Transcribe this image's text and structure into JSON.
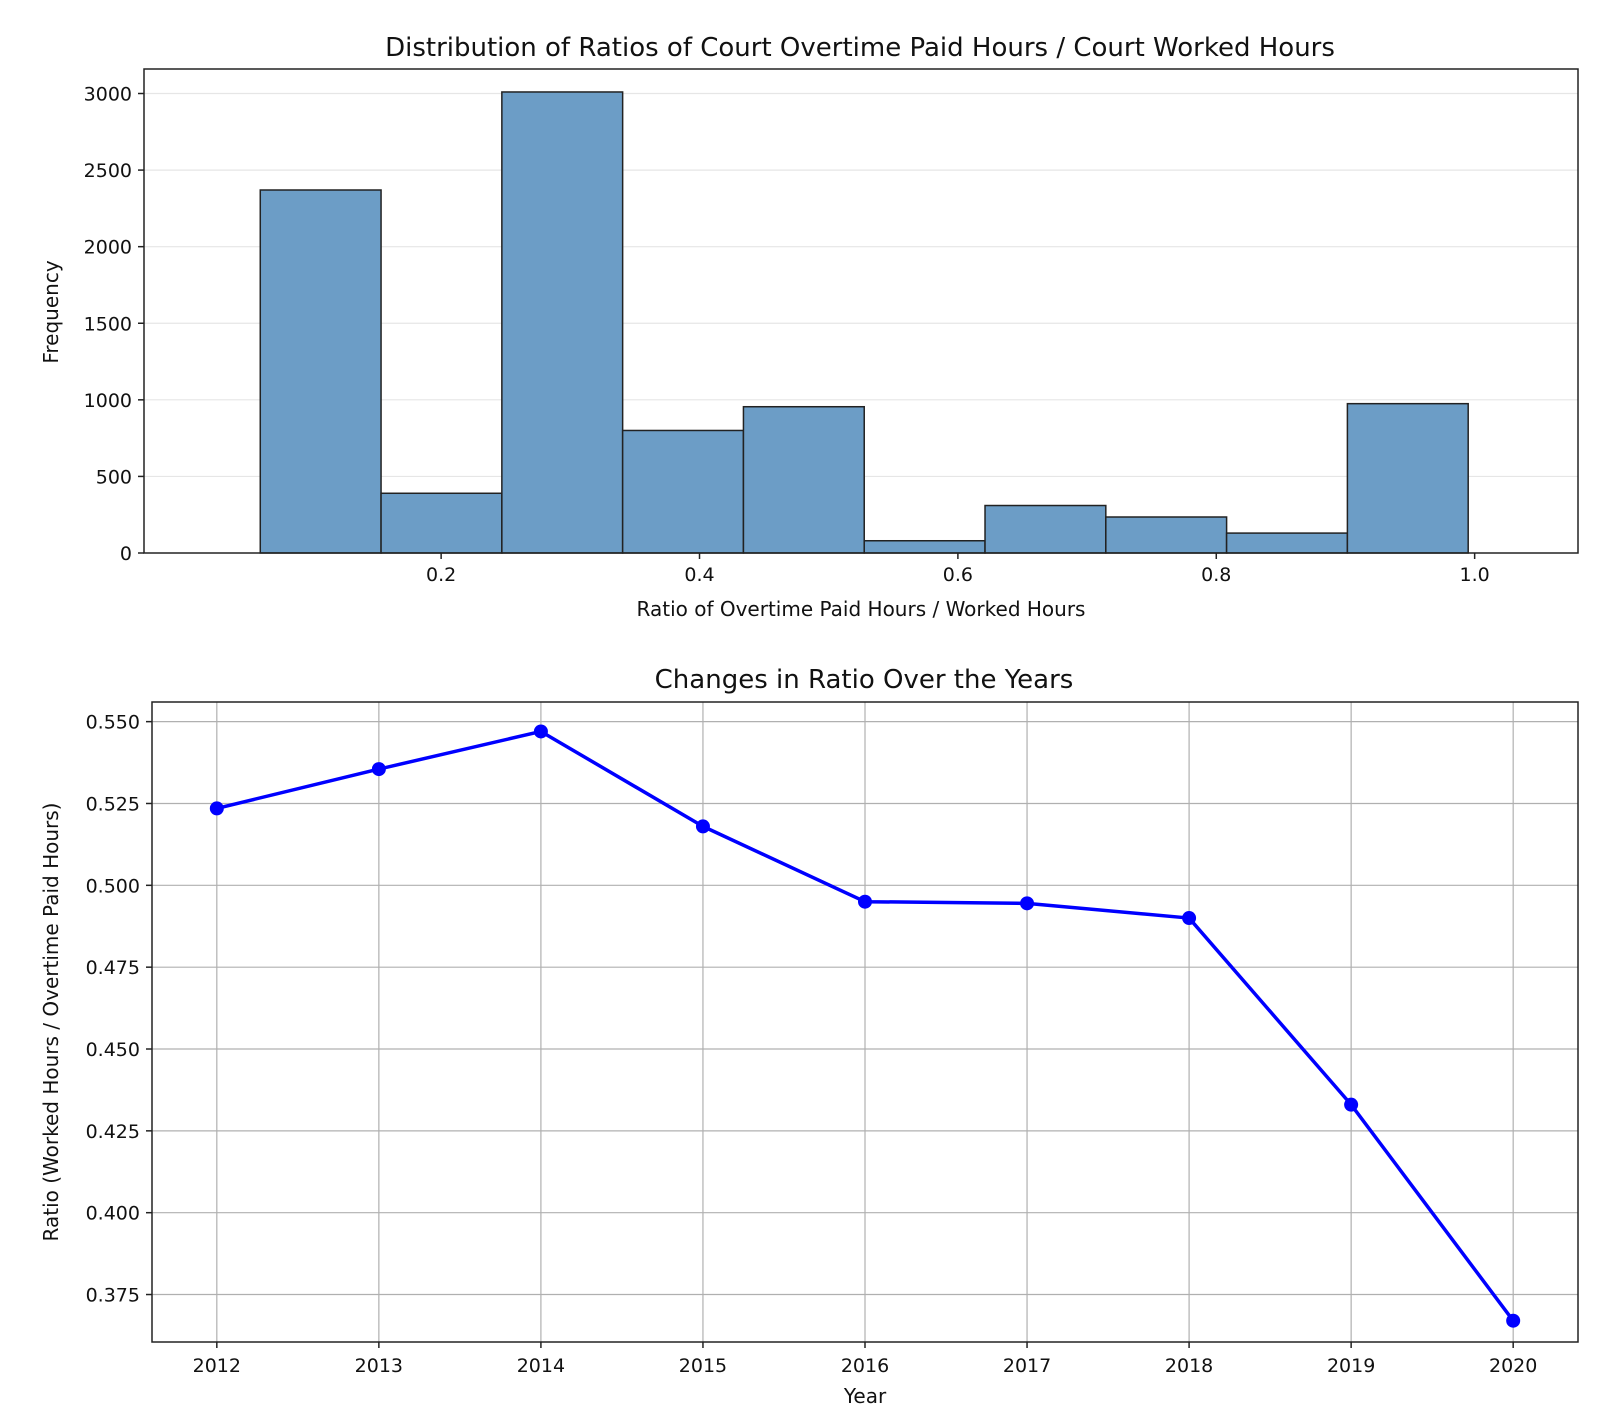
{
  "chart_data": [
    {
      "type": "bar",
      "title": "Distribution of Ratios of Court Overtime Paid Hours / Court Worked Hours",
      "xlabel": "Ratio of Overtime Paid Hours / Worked Hours",
      "ylabel": "Frequency",
      "bin_edges": [
        0.06,
        0.1535,
        0.247,
        0.3405,
        0.434,
        0.5275,
        0.621,
        0.7145,
        0.808,
        0.9015,
        0.995
      ],
      "values": [
        2370,
        390,
        3010,
        800,
        955,
        80,
        310,
        235,
        130,
        975
      ],
      "xlim": [
        -0.03,
        1.08
      ],
      "ylim": [
        0,
        3160
      ],
      "xticks": [
        0.2,
        0.4,
        0.6,
        0.8,
        1.0
      ],
      "xtick_labels": [
        "0.2",
        "0.4",
        "0.6",
        "0.8",
        "1.0"
      ],
      "yticks": [
        0,
        500,
        1000,
        1500,
        2000,
        2500,
        3000
      ],
      "ytick_labels": [
        "0",
        "500",
        "1000",
        "1500",
        "2000",
        "2500",
        "3000"
      ],
      "grid": "y",
      "bar_color": "#6c9dc6",
      "edge_color": "#222222"
    },
    {
      "type": "line",
      "title": "Changes in Ratio Over the Years",
      "xlabel": "Year",
      "ylabel": "Ratio (Worked Hours / Overtime Paid Hours)",
      "x": [
        2012,
        2013,
        2014,
        2015,
        2016,
        2017,
        2018,
        2019,
        2020
      ],
      "xtick_labels": [
        "2012",
        "2013",
        "2014",
        "2015",
        "2016",
        "2017",
        "2018",
        "2019",
        "2020"
      ],
      "series": [
        {
          "values": [
            0.5235,
            0.5355,
            0.547,
            0.518,
            0.495,
            0.4945,
            0.49,
            0.433,
            0.367
          ]
        }
      ],
      "xlim": [
        2011.6,
        2020.4
      ],
      "ylim": [
        0.3605,
        0.556
      ],
      "yticks": [
        0.375,
        0.4,
        0.425,
        0.45,
        0.475,
        0.5,
        0.525,
        0.55
      ],
      "ytick_labels": [
        "0.375",
        "0.400",
        "0.425",
        "0.450",
        "0.475",
        "0.500",
        "0.525",
        "0.550"
      ],
      "grid": "both",
      "line_color": "#0000ff",
      "marker": "circle"
    }
  ]
}
